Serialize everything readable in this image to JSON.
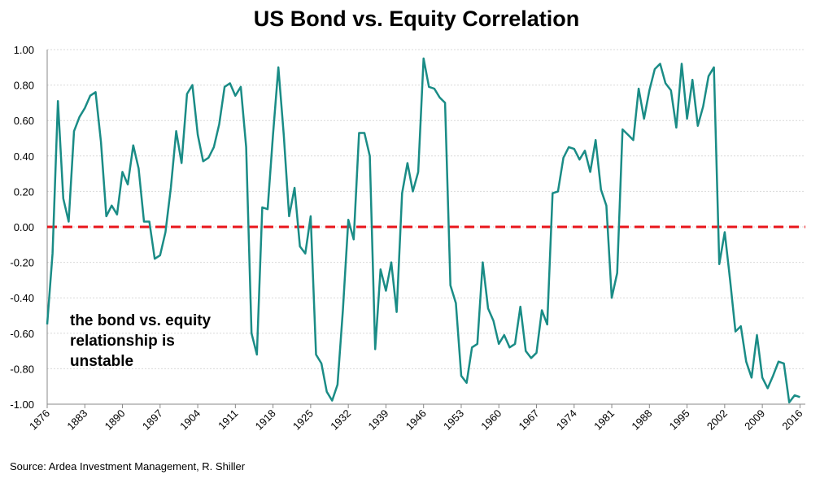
{
  "chart_data": {
    "type": "line",
    "title": "US Bond vs. Equity Correlation",
    "source": "Source: Ardea Investment Management, R. Shiller",
    "annotation": [
      "the bond vs. equity",
      "relationship is",
      "unstable"
    ],
    "annotation_color": "#e8161b",
    "reference_line": {
      "value": 0,
      "color": "#e8161b"
    },
    "grid": true,
    "x": [
      1876,
      1877,
      1878,
      1879,
      1880,
      1881,
      1882,
      1883,
      1884,
      1885,
      1886,
      1887,
      1888,
      1889,
      1890,
      1891,
      1892,
      1893,
      1894,
      1895,
      1896,
      1897,
      1898,
      1899,
      1900,
      1901,
      1902,
      1903,
      1904,
      1905,
      1906,
      1907,
      1908,
      1909,
      1910,
      1911,
      1912,
      1913,
      1914,
      1915,
      1916,
      1917,
      1918,
      1919,
      1920,
      1921,
      1922,
      1923,
      1924,
      1925,
      1926,
      1927,
      1928,
      1929,
      1930,
      1931,
      1932,
      1933,
      1934,
      1935,
      1936,
      1937,
      1938,
      1939,
      1940,
      1941,
      1942,
      1943,
      1944,
      1945,
      1946,
      1947,
      1948,
      1949,
      1950,
      1951,
      1952,
      1953,
      1954,
      1955,
      1956,
      1957,
      1958,
      1959,
      1960,
      1961,
      1962,
      1963,
      1964,
      1965,
      1966,
      1967,
      1968,
      1969,
      1970,
      1971,
      1972,
      1973,
      1974,
      1975,
      1976,
      1977,
      1978,
      1979,
      1980,
      1981,
      1982,
      1983,
      1984,
      1985,
      1986,
      1987,
      1988,
      1989,
      1990,
      1991,
      1992,
      1993,
      1994,
      1995,
      1996,
      1997,
      1998,
      1999,
      2000,
      2001,
      2002,
      2003,
      2004,
      2005,
      2006,
      2007,
      2008,
      2009,
      2010,
      2011,
      2012,
      2013,
      2014,
      2015,
      2016
    ],
    "series": [
      {
        "color": "#1a8c86",
        "values": [
          -0.55,
          -0.15,
          0.71,
          0.16,
          0.03,
          0.54,
          0.62,
          0.67,
          0.74,
          0.76,
          0.48,
          0.06,
          0.12,
          0.07,
          0.31,
          0.24,
          0.46,
          0.33,
          0.03,
          0.03,
          -0.18,
          -0.16,
          -0.03,
          0.22,
          0.54,
          0.36,
          0.75,
          0.8,
          0.52,
          0.37,
          0.39,
          0.45,
          0.58,
          0.79,
          0.81,
          0.74,
          0.79,
          0.45,
          -0.6,
          -0.72,
          0.11,
          0.1,
          0.52,
          0.9,
          0.52,
          0.06,
          0.22,
          -0.11,
          -0.15,
          0.06,
          -0.72,
          -0.77,
          -0.93,
          -0.98,
          -0.89,
          -0.47,
          0.04,
          -0.07,
          0.53,
          0.53,
          0.4,
          -0.69,
          -0.24,
          -0.36,
          -0.2,
          -0.48,
          0.19,
          0.36,
          0.2,
          0.31,
          0.95,
          0.79,
          0.78,
          0.73,
          0.7,
          -0.33,
          -0.43,
          -0.84,
          -0.88,
          -0.68,
          -0.66,
          -0.2,
          -0.46,
          -0.53,
          -0.66,
          -0.61,
          -0.68,
          -0.66,
          -0.45,
          -0.7,
          -0.74,
          -0.71,
          -0.47,
          -0.55,
          0.19,
          0.2,
          0.39,
          0.45,
          0.44,
          0.38,
          0.43,
          0.31,
          0.49,
          0.21,
          0.12,
          -0.4,
          -0.26,
          0.55,
          0.52,
          0.49,
          0.78,
          0.61,
          0.77,
          0.89,
          0.92,
          0.81,
          0.77,
          0.56,
          0.92,
          0.61,
          0.83,
          0.57,
          0.68,
          0.85,
          0.9,
          -0.21,
          -0.03,
          -0.3,
          -0.59,
          -0.56,
          -0.76,
          -0.85,
          -0.61,
          -0.85,
          -0.91,
          -0.84,
          -0.76,
          -0.77,
          -0.99,
          -0.95,
          -0.96
        ]
      }
    ],
    "xlim": [
      1876,
      2017
    ],
    "xticks": [
      1876,
      1883,
      1890,
      1897,
      1904,
      1911,
      1918,
      1925,
      1932,
      1939,
      1946,
      1953,
      1960,
      1967,
      1974,
      1981,
      1988,
      1995,
      2002,
      2009,
      2016
    ],
    "ylim": [
      -1,
      1
    ],
    "yticks": [
      {
        "value": -1,
        "label": "-1.00"
      },
      {
        "value": -0.8,
        "label": "-0.80"
      },
      {
        "value": -0.6,
        "label": "-0.60"
      },
      {
        "value": -0.4,
        "label": "-0.40"
      },
      {
        "value": -0.2,
        "label": "-0.20"
      },
      {
        "value": 0,
        "label": "0.00"
      },
      {
        "value": 0.2,
        "label": "0.20"
      },
      {
        "value": 0.4,
        "label": "0.40"
      },
      {
        "value": 0.6,
        "label": "0.60"
      },
      {
        "value": 0.8,
        "label": "0.80"
      },
      {
        "value": 1,
        "label": "1.00"
      }
    ]
  }
}
